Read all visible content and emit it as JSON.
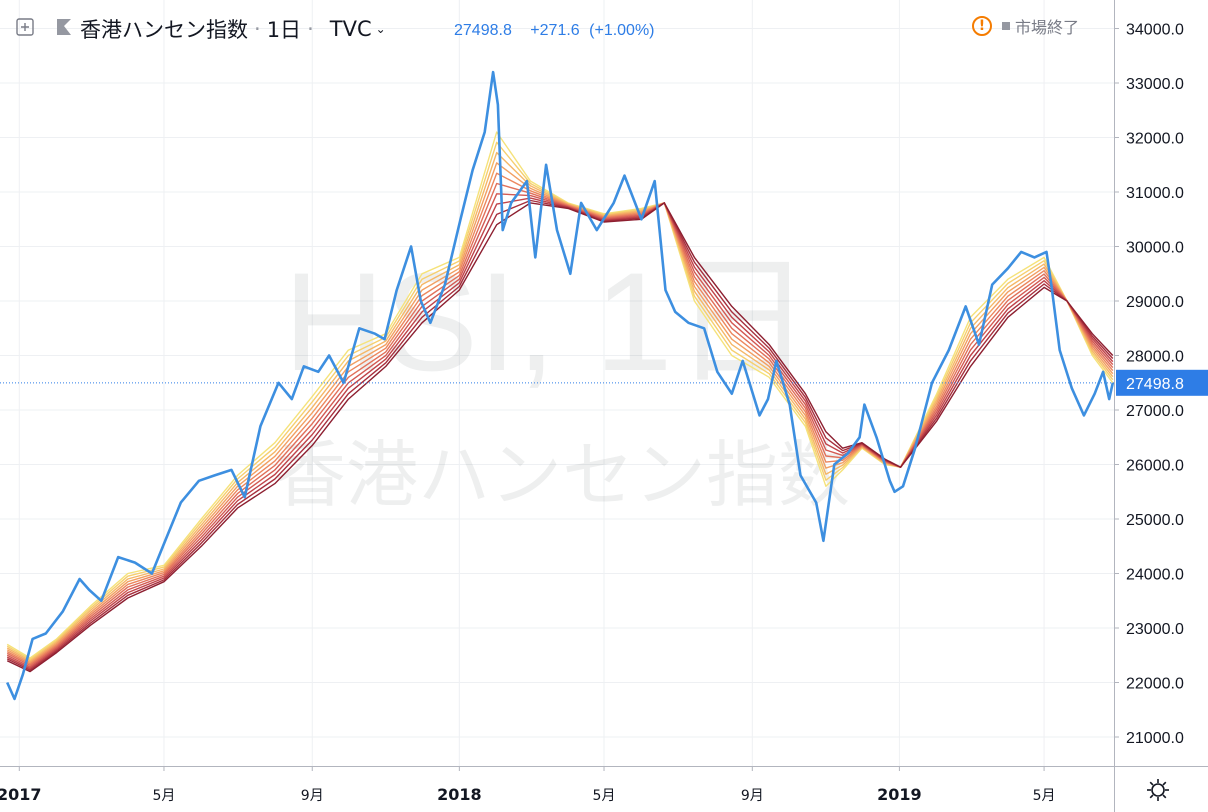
{
  "header": {
    "symbol_title": "香港ハンセン指数",
    "interval": "1日",
    "exchange": "TVC",
    "last": "27498.8",
    "change": "+271.6",
    "change_pct": "(+1.00%)",
    "market_status": "市場終了",
    "icons": [
      "plus-square-icon",
      "flag-icon",
      "chevron-down-icon",
      "warning-icon",
      "gear-icon"
    ]
  },
  "watermark": {
    "line1": "HSI, 1日",
    "line2": "香港ハンセン指数"
  },
  "price_tag": "27498.8",
  "colors": {
    "price_line": "#3d8fe0",
    "ribbon": [
      "#f5e27a",
      "#f6cf6f",
      "#f5b767",
      "#f29f62",
      "#ec875e",
      "#e1705a",
      "#d35a53",
      "#c0444a",
      "#a72f3d",
      "#8d1f30"
    ],
    "axis_text": "#131722",
    "grid": "#eef0f3"
  },
  "chart_data": {
    "type": "line",
    "title": "",
    "xlabel": "",
    "ylabel": "",
    "ylim": [
      20500,
      34400
    ],
    "y_ticks": [
      "21000.0",
      "22000.0",
      "23000.0",
      "24000.0",
      "25000.0",
      "26000.0",
      "27000.0",
      "28000.0",
      "29000.0",
      "30000.0",
      "31000.0",
      "32000.0",
      "33000.0",
      "34000.0"
    ],
    "x_ticks": [
      {
        "label": "2017",
        "date": "2017-01-01"
      },
      {
        "label": "5月",
        "date": "2017-05-01"
      },
      {
        "label": "9月",
        "date": "2017-09-01"
      },
      {
        "label": "2018",
        "date": "2018-01-01"
      },
      {
        "label": "5月",
        "date": "2018-05-01"
      },
      {
        "label": "9月",
        "date": "2018-09-01"
      },
      {
        "label": "2019",
        "date": "2019-01-01"
      },
      {
        "label": "5月",
        "date": "2019-05-01"
      }
    ],
    "x_range": [
      "2016-12-16",
      "2019-06-28"
    ],
    "last_value": 27498.8,
    "price_series": {
      "name": "HSI",
      "points": [
        [
          "2016-12-22",
          22000
        ],
        [
          "2016-12-28",
          21700
        ],
        [
          "2017-01-04",
          22150
        ],
        [
          "2017-01-12",
          22800
        ],
        [
          "2017-01-23",
          22900
        ],
        [
          "2017-02-06",
          23300
        ],
        [
          "2017-02-20",
          23900
        ],
        [
          "2017-02-28",
          23700
        ],
        [
          "2017-03-10",
          23500
        ],
        [
          "2017-03-24",
          24300
        ],
        [
          "2017-04-07",
          24200
        ],
        [
          "2017-04-21",
          24000
        ],
        [
          "2017-05-02",
          24600
        ],
        [
          "2017-05-15",
          25300
        ],
        [
          "2017-05-30",
          25700
        ],
        [
          "2017-06-12",
          25800
        ],
        [
          "2017-06-26",
          25900
        ],
        [
          "2017-07-07",
          25400
        ],
        [
          "2017-07-20",
          26700
        ],
        [
          "2017-08-04",
          27500
        ],
        [
          "2017-08-15",
          27200
        ],
        [
          "2017-08-25",
          27800
        ],
        [
          "2017-09-06",
          27700
        ],
        [
          "2017-09-15",
          28000
        ],
        [
          "2017-09-27",
          27500
        ],
        [
          "2017-10-10",
          28500
        ],
        [
          "2017-10-23",
          28400
        ],
        [
          "2017-10-31",
          28300
        ],
        [
          "2017-11-10",
          29200
        ],
        [
          "2017-11-22",
          30000
        ],
        [
          "2017-11-30",
          29000
        ],
        [
          "2017-12-08",
          28600
        ],
        [
          "2017-12-20",
          29300
        ],
        [
          "2018-01-02",
          30500
        ],
        [
          "2018-01-12",
          31400
        ],
        [
          "2018-01-22",
          32100
        ],
        [
          "2018-01-29",
          33200
        ],
        [
          "2018-02-02",
          32600
        ],
        [
          "2018-02-06",
          30300
        ],
        [
          "2018-02-13",
          30800
        ],
        [
          "2018-02-26",
          31200
        ],
        [
          "2018-03-05",
          29800
        ],
        [
          "2018-03-14",
          31500
        ],
        [
          "2018-03-23",
          30300
        ],
        [
          "2018-04-03",
          29500
        ],
        [
          "2018-04-12",
          30800
        ],
        [
          "2018-04-25",
          30300
        ],
        [
          "2018-05-09",
          30800
        ],
        [
          "2018-05-18",
          31300
        ],
        [
          "2018-06-01",
          30500
        ],
        [
          "2018-06-12",
          31200
        ],
        [
          "2018-06-21",
          29200
        ],
        [
          "2018-06-29",
          28800
        ],
        [
          "2018-07-10",
          28600
        ],
        [
          "2018-07-23",
          28500
        ],
        [
          "2018-08-03",
          27700
        ],
        [
          "2018-08-15",
          27300
        ],
        [
          "2018-08-24",
          27900
        ],
        [
          "2018-09-07",
          26900
        ],
        [
          "2018-09-14",
          27200
        ],
        [
          "2018-09-21",
          27900
        ],
        [
          "2018-10-02",
          27100
        ],
        [
          "2018-10-11",
          25800
        ],
        [
          "2018-10-24",
          25300
        ],
        [
          "2018-10-30",
          24600
        ],
        [
          "2018-11-08",
          26000
        ],
        [
          "2018-11-19",
          26200
        ],
        [
          "2018-11-29",
          26500
        ],
        [
          "2018-12-03",
          27100
        ],
        [
          "2018-12-13",
          26500
        ],
        [
          "2018-12-24",
          25700
        ],
        [
          "2018-12-28",
          25500
        ],
        [
          "2019-01-04",
          25600
        ],
        [
          "2019-01-14",
          26300
        ],
        [
          "2019-01-28",
          27500
        ],
        [
          "2019-02-11",
          28100
        ],
        [
          "2019-02-25",
          28900
        ],
        [
          "2019-03-08",
          28200
        ],
        [
          "2019-03-19",
          29300
        ],
        [
          "2019-04-01",
          29600
        ],
        [
          "2019-04-12",
          29900
        ],
        [
          "2019-04-23",
          29800
        ],
        [
          "2019-05-03",
          29900
        ],
        [
          "2019-05-07",
          29300
        ],
        [
          "2019-05-14",
          28100
        ],
        [
          "2019-05-24",
          27400
        ],
        [
          "2019-06-03",
          26900
        ],
        [
          "2019-06-12",
          27300
        ],
        [
          "2019-06-19",
          27700
        ],
        [
          "2019-06-24",
          27200
        ],
        [
          "2019-06-27",
          27498.8
        ]
      ]
    },
    "ma_ribbon": {
      "count": 10,
      "points": [
        [
          "2016-12-22",
          22700,
          22400
        ],
        [
          "2017-01-10",
          22450,
          22200
        ],
        [
          "2017-02-01",
          22800,
          22550
        ],
        [
          "2017-03-01",
          23400,
          23050
        ],
        [
          "2017-04-01",
          24000,
          23550
        ],
        [
          "2017-05-01",
          24150,
          23850
        ],
        [
          "2017-06-01",
          25000,
          24500
        ],
        [
          "2017-07-01",
          25800,
          25200
        ],
        [
          "2017-08-01",
          26400,
          25650
        ],
        [
          "2017-09-01",
          27250,
          26350
        ],
        [
          "2017-10-01",
          28100,
          27200
        ],
        [
          "2017-11-01",
          28400,
          27800
        ],
        [
          "2017-12-01",
          29500,
          28600
        ],
        [
          "2018-01-01",
          29800,
          29200
        ],
        [
          "2018-02-01",
          32100,
          30400
        ],
        [
          "2018-03-01",
          31200,
          30800
        ],
        [
          "2018-04-01",
          30800,
          30700
        ],
        [
          "2018-05-01",
          30600,
          30450
        ],
        [
          "2018-06-01",
          30700,
          30500
        ],
        [
          "2018-06-20",
          30800,
          30800
        ],
        [
          "2018-07-15",
          29000,
          29800
        ],
        [
          "2018-08-15",
          28000,
          28900
        ],
        [
          "2018-09-15",
          27600,
          28200
        ],
        [
          "2018-10-15",
          26700,
          27300
        ],
        [
          "2018-11-01",
          25600,
          26600
        ],
        [
          "2018-11-15",
          25900,
          26300
        ],
        [
          "2018-12-01",
          26300,
          26400
        ],
        [
          "2018-12-20",
          26000,
          26100
        ],
        [
          "2019-01-02",
          25950,
          25950
        ],
        [
          "2019-02-01",
          27300,
          26800
        ],
        [
          "2019-03-01",
          28700,
          27800
        ],
        [
          "2019-04-01",
          29400,
          28700
        ],
        [
          "2019-05-01",
          29800,
          29250
        ],
        [
          "2019-05-20",
          29000,
          29000
        ],
        [
          "2019-06-10",
          28000,
          28400
        ],
        [
          "2019-06-27",
          27500,
          28000
        ]
      ]
    }
  }
}
